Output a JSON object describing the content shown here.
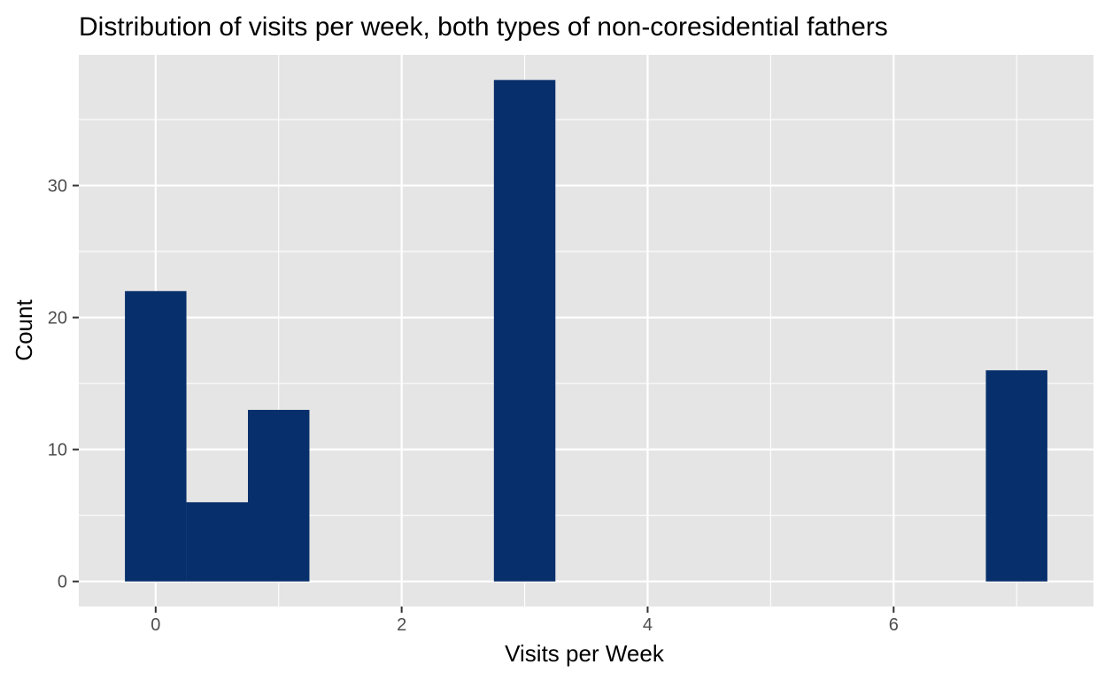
{
  "chart_data": {
    "type": "bar",
    "title": "Distribution of visits per week, both types of non-coresidential fathers",
    "xlabel": "Visits per Week",
    "ylabel": "Count",
    "xlim": [
      -0.625,
      7.625
    ],
    "ylim": [
      -1.9,
      39.9
    ],
    "x_ticks": [
      0,
      2,
      4,
      6
    ],
    "x_minor_grid": [
      1,
      3,
      5,
      7
    ],
    "y_ticks": [
      0,
      10,
      20,
      30
    ],
    "y_minor_grid": [
      5,
      15,
      25,
      35
    ],
    "bin_width": 0.5,
    "bins": [
      {
        "x": 0.0,
        "count": 22
      },
      {
        "x": 0.5,
        "count": 6
      },
      {
        "x": 1.0,
        "count": 13
      },
      {
        "x": 3.0,
        "count": 38
      },
      {
        "x": 7.0,
        "count": 16
      }
    ],
    "colors": {
      "bar": "#072f6b",
      "panel": "#e5e5e5",
      "grid": "#ffffff"
    },
    "grid": true,
    "legend": "none"
  }
}
